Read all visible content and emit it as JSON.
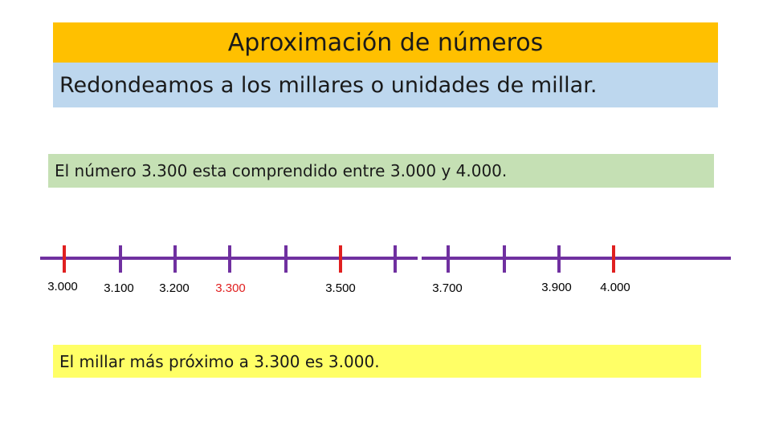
{
  "title": "Aproximación de números",
  "subtitle": "Redondeamos a los millares o unidades de millar.",
  "statement": "El número 3.300 esta comprendido entre 3.000 y 4.000.",
  "answer": "El millar más próximo a 3.300 es 3.000.",
  "number_line": {
    "ticks": [
      {
        "value": 3000,
        "label": "3.000",
        "color": "#e02020"
      },
      {
        "value": 3100,
        "label": "3.100",
        "color": "#7030a0"
      },
      {
        "value": 3200,
        "label": "3.200",
        "color": "#7030a0"
      },
      {
        "value": 3300,
        "label": "3.300",
        "color": "#7030a0"
      },
      {
        "value": 3400,
        "label": "",
        "color": "#7030a0"
      },
      {
        "value": 3500,
        "label": "3.500",
        "color": "#e02020"
      },
      {
        "value": 3600,
        "label": "",
        "color": "#7030a0"
      },
      {
        "value": 3700,
        "label": "3.700",
        "color": "#7030a0"
      },
      {
        "value": 3800,
        "label": "",
        "color": "#7030a0"
      },
      {
        "value": 3900,
        "label": "3.900",
        "color": "#7030a0"
      },
      {
        "value": 4000,
        "label": "4.000",
        "color": "#e02020"
      }
    ],
    "highlight_value": 3300,
    "highlight_label_color": "#e02020",
    "line_color": "#7030a0",
    "label_color": "#000000"
  }
}
